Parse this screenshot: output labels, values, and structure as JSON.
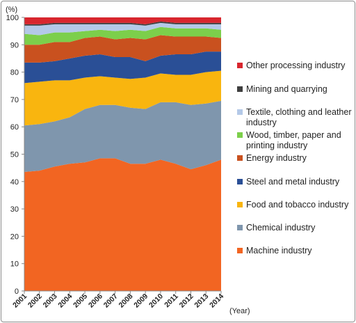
{
  "chart_data": {
    "type": "area",
    "stacked": true,
    "title": "",
    "ylabel": "(%)",
    "xlabel": "(Year)",
    "ylim": [
      0,
      100
    ],
    "yticks": [
      "0",
      "10",
      "20",
      "30",
      "40",
      "50",
      "60",
      "70",
      "80",
      "90",
      "100"
    ],
    "grid": false,
    "legend_position": "right",
    "categories": [
      "2001",
      "2002",
      "2003",
      "2004",
      "2005",
      "2006",
      "2007",
      "2008",
      "2009",
      "2010",
      "2011",
      "2012",
      "2013",
      "2014"
    ],
    "series": [
      {
        "name": "Machine industry",
        "color": "#f26522",
        "values": [
          43.5,
          44.0,
          45.5,
          46.5,
          47.0,
          48.5,
          48.5,
          46.5,
          46.5,
          48.0,
          46.5,
          44.5,
          46.0,
          48.0
        ]
      },
      {
        "name": "Chemical industry",
        "color": "#7f96ad",
        "values": [
          17.0,
          17.0,
          16.5,
          17.0,
          19.5,
          19.5,
          19.5,
          20.5,
          20.0,
          21.0,
          22.5,
          23.5,
          22.5,
          21.5
        ]
      },
      {
        "name": "Food and tobacco industry",
        "color": "#f9b50f",
        "values": [
          15.5,
          15.5,
          15.0,
          13.5,
          11.5,
          10.5,
          10.0,
          10.5,
          11.5,
          10.5,
          10.0,
          11.0,
          11.5,
          11.0
        ]
      },
      {
        "name": "Steel and metal industry",
        "color": "#2a4f96",
        "values": [
          7.5,
          7.0,
          7.0,
          8.0,
          8.0,
          8.0,
          7.5,
          8.0,
          6.0,
          6.5,
          7.5,
          7.5,
          7.5,
          7.0
        ]
      },
      {
        "name": "Energy industry",
        "color": "#c9511f",
        "values": [
          6.5,
          6.5,
          7.0,
          6.0,
          6.5,
          6.5,
          6.5,
          7.0,
          8.0,
          7.5,
          6.5,
          6.5,
          5.5,
          5.0
        ]
      },
      {
        "name": "Wood, timber, paper and printing industry",
        "color": "#7ccf4b",
        "values": [
          4.0,
          3.5,
          3.5,
          3.5,
          2.5,
          2.5,
          3.0,
          3.0,
          3.0,
          3.0,
          3.0,
          3.0,
          3.0,
          3.0
        ]
      },
      {
        "name": "Textile, clothing and leather industry",
        "color": "#b4c9e8",
        "values": [
          3.0,
          3.5,
          3.0,
          3.0,
          2.5,
          2.0,
          2.5,
          2.0,
          2.0,
          1.5,
          1.5,
          1.5,
          1.5,
          2.0
        ]
      },
      {
        "name": "Mining and quarrying",
        "color": "#3f3f3f",
        "values": [
          0.5,
          0.5,
          0.5,
          0.5,
          0.5,
          0.5,
          0.5,
          0.5,
          0.5,
          0.5,
          0.5,
          0.5,
          0.5,
          0.5
        ]
      },
      {
        "name": "Other processing industry",
        "color": "#d8262e",
        "values": [
          2.5,
          2.5,
          2.0,
          2.0,
          2.0,
          2.0,
          2.0,
          2.0,
          2.5,
          1.5,
          2.0,
          2.0,
          2.0,
          2.0
        ]
      }
    ],
    "legend_order": [
      "Other processing industry",
      "Mining and quarrying",
      "Textile, clothing and leather industry",
      "Wood, timber, paper and printing industry",
      "Energy industry",
      "Steel and metal industry",
      "Food and tobacco industry",
      "Chemical industry",
      "Machine industry"
    ]
  }
}
